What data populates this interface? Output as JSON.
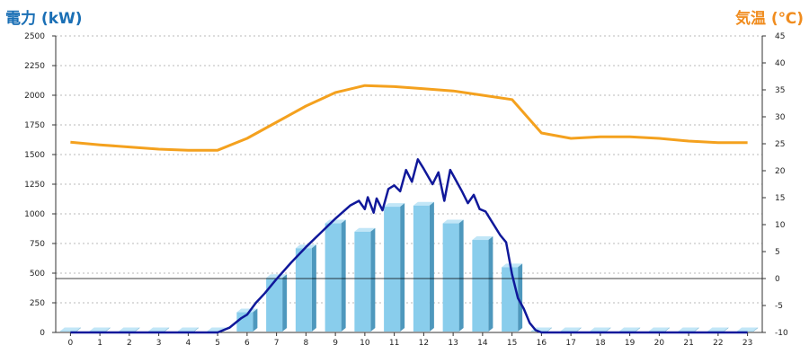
{
  "chart_data": {
    "type": "bar",
    "ylabel_left": "電力 (kW)",
    "ylabel_right": "気温 (℃)",
    "categories": [
      "0",
      "1",
      "2",
      "3",
      "4",
      "5",
      "6",
      "7",
      "8",
      "9",
      "10",
      "11",
      "12",
      "13",
      "14",
      "15",
      "16",
      "17",
      "18",
      "19",
      "20",
      "21",
      "22",
      "23"
    ],
    "ylim_left": [
      0,
      2500
    ],
    "yticks_left": [
      "0",
      "250",
      "500",
      "750",
      "1000",
      "1250",
      "1500",
      "1750",
      "2000",
      "2250",
      "2500"
    ],
    "ylim_right": [
      -10,
      45
    ],
    "yticks_right": [
      "-10",
      "-5",
      "0",
      "5",
      "10",
      "15",
      "20",
      "25",
      "30",
      "35",
      "40",
      "45"
    ],
    "grid": true,
    "series": [
      {
        "kind": "bar",
        "axis": "left",
        "values": [
          0,
          0,
          0,
          0,
          0,
          0,
          170,
          460,
          710,
          920,
          850,
          1060,
          1070,
          920,
          780,
          550,
          0,
          0,
          0,
          0,
          0,
          0,
          0,
          0
        ]
      },
      {
        "kind": "line",
        "axis": "left",
        "points": [
          [
            0,
            0
          ],
          [
            5,
            0
          ],
          [
            5.4,
            40
          ],
          [
            5.8,
            120
          ],
          [
            6.0,
            150
          ],
          [
            6.3,
            250
          ],
          [
            6.6,
            330
          ],
          [
            7.0,
            450
          ],
          [
            7.5,
            590
          ],
          [
            8.0,
            720
          ],
          [
            8.5,
            840
          ],
          [
            9.0,
            960
          ],
          [
            9.5,
            1070
          ],
          [
            9.8,
            1110
          ],
          [
            10.0,
            1040
          ],
          [
            10.1,
            1140
          ],
          [
            10.3,
            1010
          ],
          [
            10.4,
            1130
          ],
          [
            10.6,
            1030
          ],
          [
            10.8,
            1210
          ],
          [
            11.0,
            1240
          ],
          [
            11.2,
            1190
          ],
          [
            11.4,
            1370
          ],
          [
            11.6,
            1270
          ],
          [
            11.8,
            1460
          ],
          [
            12.0,
            1380
          ],
          [
            12.3,
            1250
          ],
          [
            12.5,
            1350
          ],
          [
            12.7,
            1110
          ],
          [
            12.9,
            1370
          ],
          [
            13.1,
            1280
          ],
          [
            13.3,
            1190
          ],
          [
            13.5,
            1090
          ],
          [
            13.7,
            1160
          ],
          [
            13.9,
            1040
          ],
          [
            14.1,
            1020
          ],
          [
            14.3,
            940
          ],
          [
            14.6,
            820
          ],
          [
            14.8,
            760
          ],
          [
            15.0,
            490
          ],
          [
            15.2,
            290
          ],
          [
            15.4,
            200
          ],
          [
            15.6,
            80
          ],
          [
            15.8,
            20
          ],
          [
            16.0,
            0
          ],
          [
            23,
            0
          ]
        ]
      },
      {
        "kind": "line",
        "axis": "right",
        "values": [
          25.3,
          24.8,
          24.4,
          24.0,
          23.8,
          23.8,
          26.0,
          29.0,
          32.0,
          34.5,
          35.8,
          35.6,
          35.2,
          34.8,
          34.0,
          33.2,
          27.0,
          26.0,
          26.3,
          26.3,
          26.0,
          25.5,
          25.2,
          25.2
        ]
      }
    ],
    "threshold": {
      "axis": "right",
      "value": 0
    },
    "colors": {
      "bar_front": "#89cdec",
      "bar_side": "#4e98bd",
      "bar_top": "#c1e6f7",
      "power_line": "#10189a",
      "temp_line": "#f4a11e",
      "grid": "#b8b8b8",
      "threshold": "#000000",
      "left_title": "#1a6fb5",
      "right_title": "#f08c1e"
    }
  }
}
